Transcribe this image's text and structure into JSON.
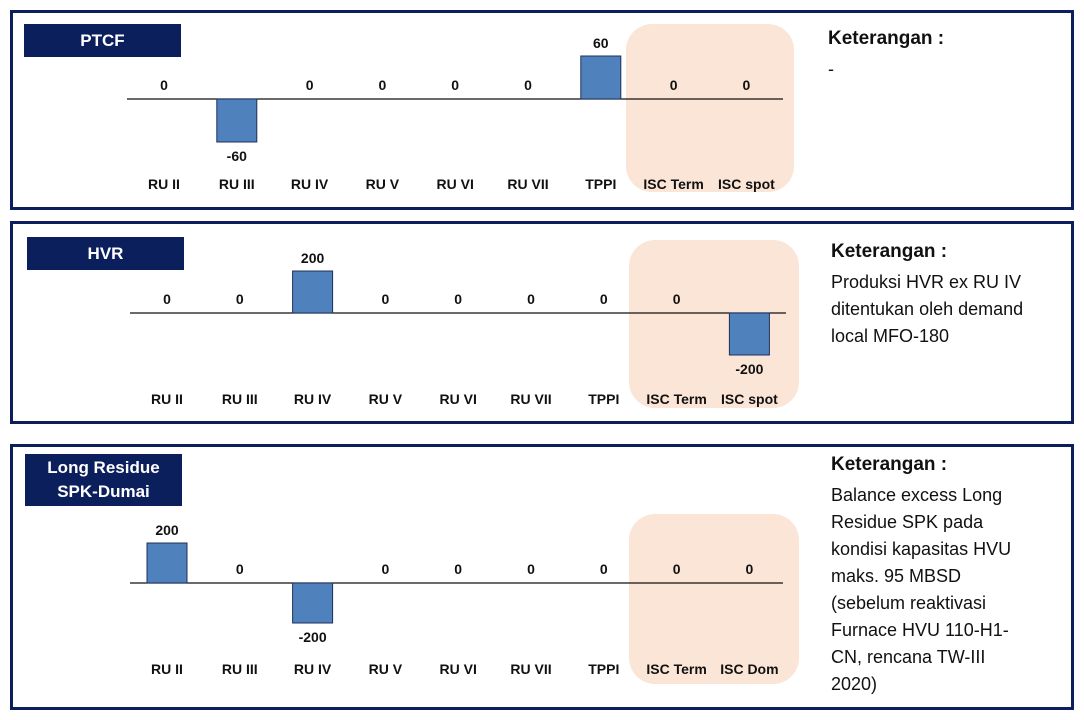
{
  "colors": {
    "border": "#0b1f5c",
    "label_box": "#0b1f5c",
    "bar": "#4f81bd",
    "bar_stroke": "#1f2f5c",
    "highlight": "#fbe5d6"
  },
  "chart_data": [
    {
      "type": "bar",
      "title": "PTCF",
      "categories": [
        "RU II",
        "RU III",
        "RU IV",
        "RU V",
        "RU VI",
        "RU VII",
        "TPPI",
        "ISC Term",
        "ISC spot"
      ],
      "values": [
        0,
        -60,
        0,
        0,
        0,
        0,
        60,
        0,
        0
      ],
      "value_labels": [
        "0",
        "-60",
        "0",
        "0",
        "0",
        "0",
        "60",
        "0",
        "0"
      ],
      "highlight_categories": [
        "ISC Term",
        "ISC spot"
      ],
      "note_title": "Keterangan :",
      "note_lines": [
        "-"
      ]
    },
    {
      "type": "bar",
      "title": "HVR",
      "categories": [
        "RU II",
        "RU III",
        "RU IV",
        "RU V",
        "RU VI",
        "RU VII",
        "TPPI",
        "ISC Term",
        "ISC spot"
      ],
      "values": [
        0,
        0,
        200,
        0,
        0,
        0,
        0,
        0,
        -200
      ],
      "value_labels": [
        "0",
        "0",
        "200",
        "0",
        "0",
        "0",
        "0",
        "0",
        "-200"
      ],
      "highlight_categories": [
        "ISC Term",
        "ISC spot"
      ],
      "note_title": "Keterangan :",
      "note_lines": [
        "Produksi HVR ex RU IV",
        "ditentukan oleh demand",
        "local MFO-180"
      ]
    },
    {
      "type": "bar",
      "title_lines": [
        "Long Residue",
        "SPK-Dumai"
      ],
      "categories": [
        "RU II",
        "RU III",
        "RU IV",
        "RU V",
        "RU VI",
        "RU VII",
        "TPPI",
        "ISC Term",
        "ISC Dom"
      ],
      "values": [
        200,
        0,
        -200,
        0,
        0,
        0,
        0,
        0,
        0
      ],
      "value_labels": [
        "200",
        "0",
        "-200",
        "0",
        "0",
        "0",
        "0",
        "0",
        "0"
      ],
      "highlight_categories": [
        "ISC Term",
        "ISC Dom"
      ],
      "note_title": "Keterangan :",
      "note_lines": [
        "Balance excess Long",
        "Residue SPK pada",
        "kondisi kapasitas HVU",
        "maks. 95 MBSD",
        "(sebelum reaktivasi",
        "Furnace HVU 110-H1-",
        "CN, rencana TW-III",
        "2020)"
      ]
    }
  ]
}
